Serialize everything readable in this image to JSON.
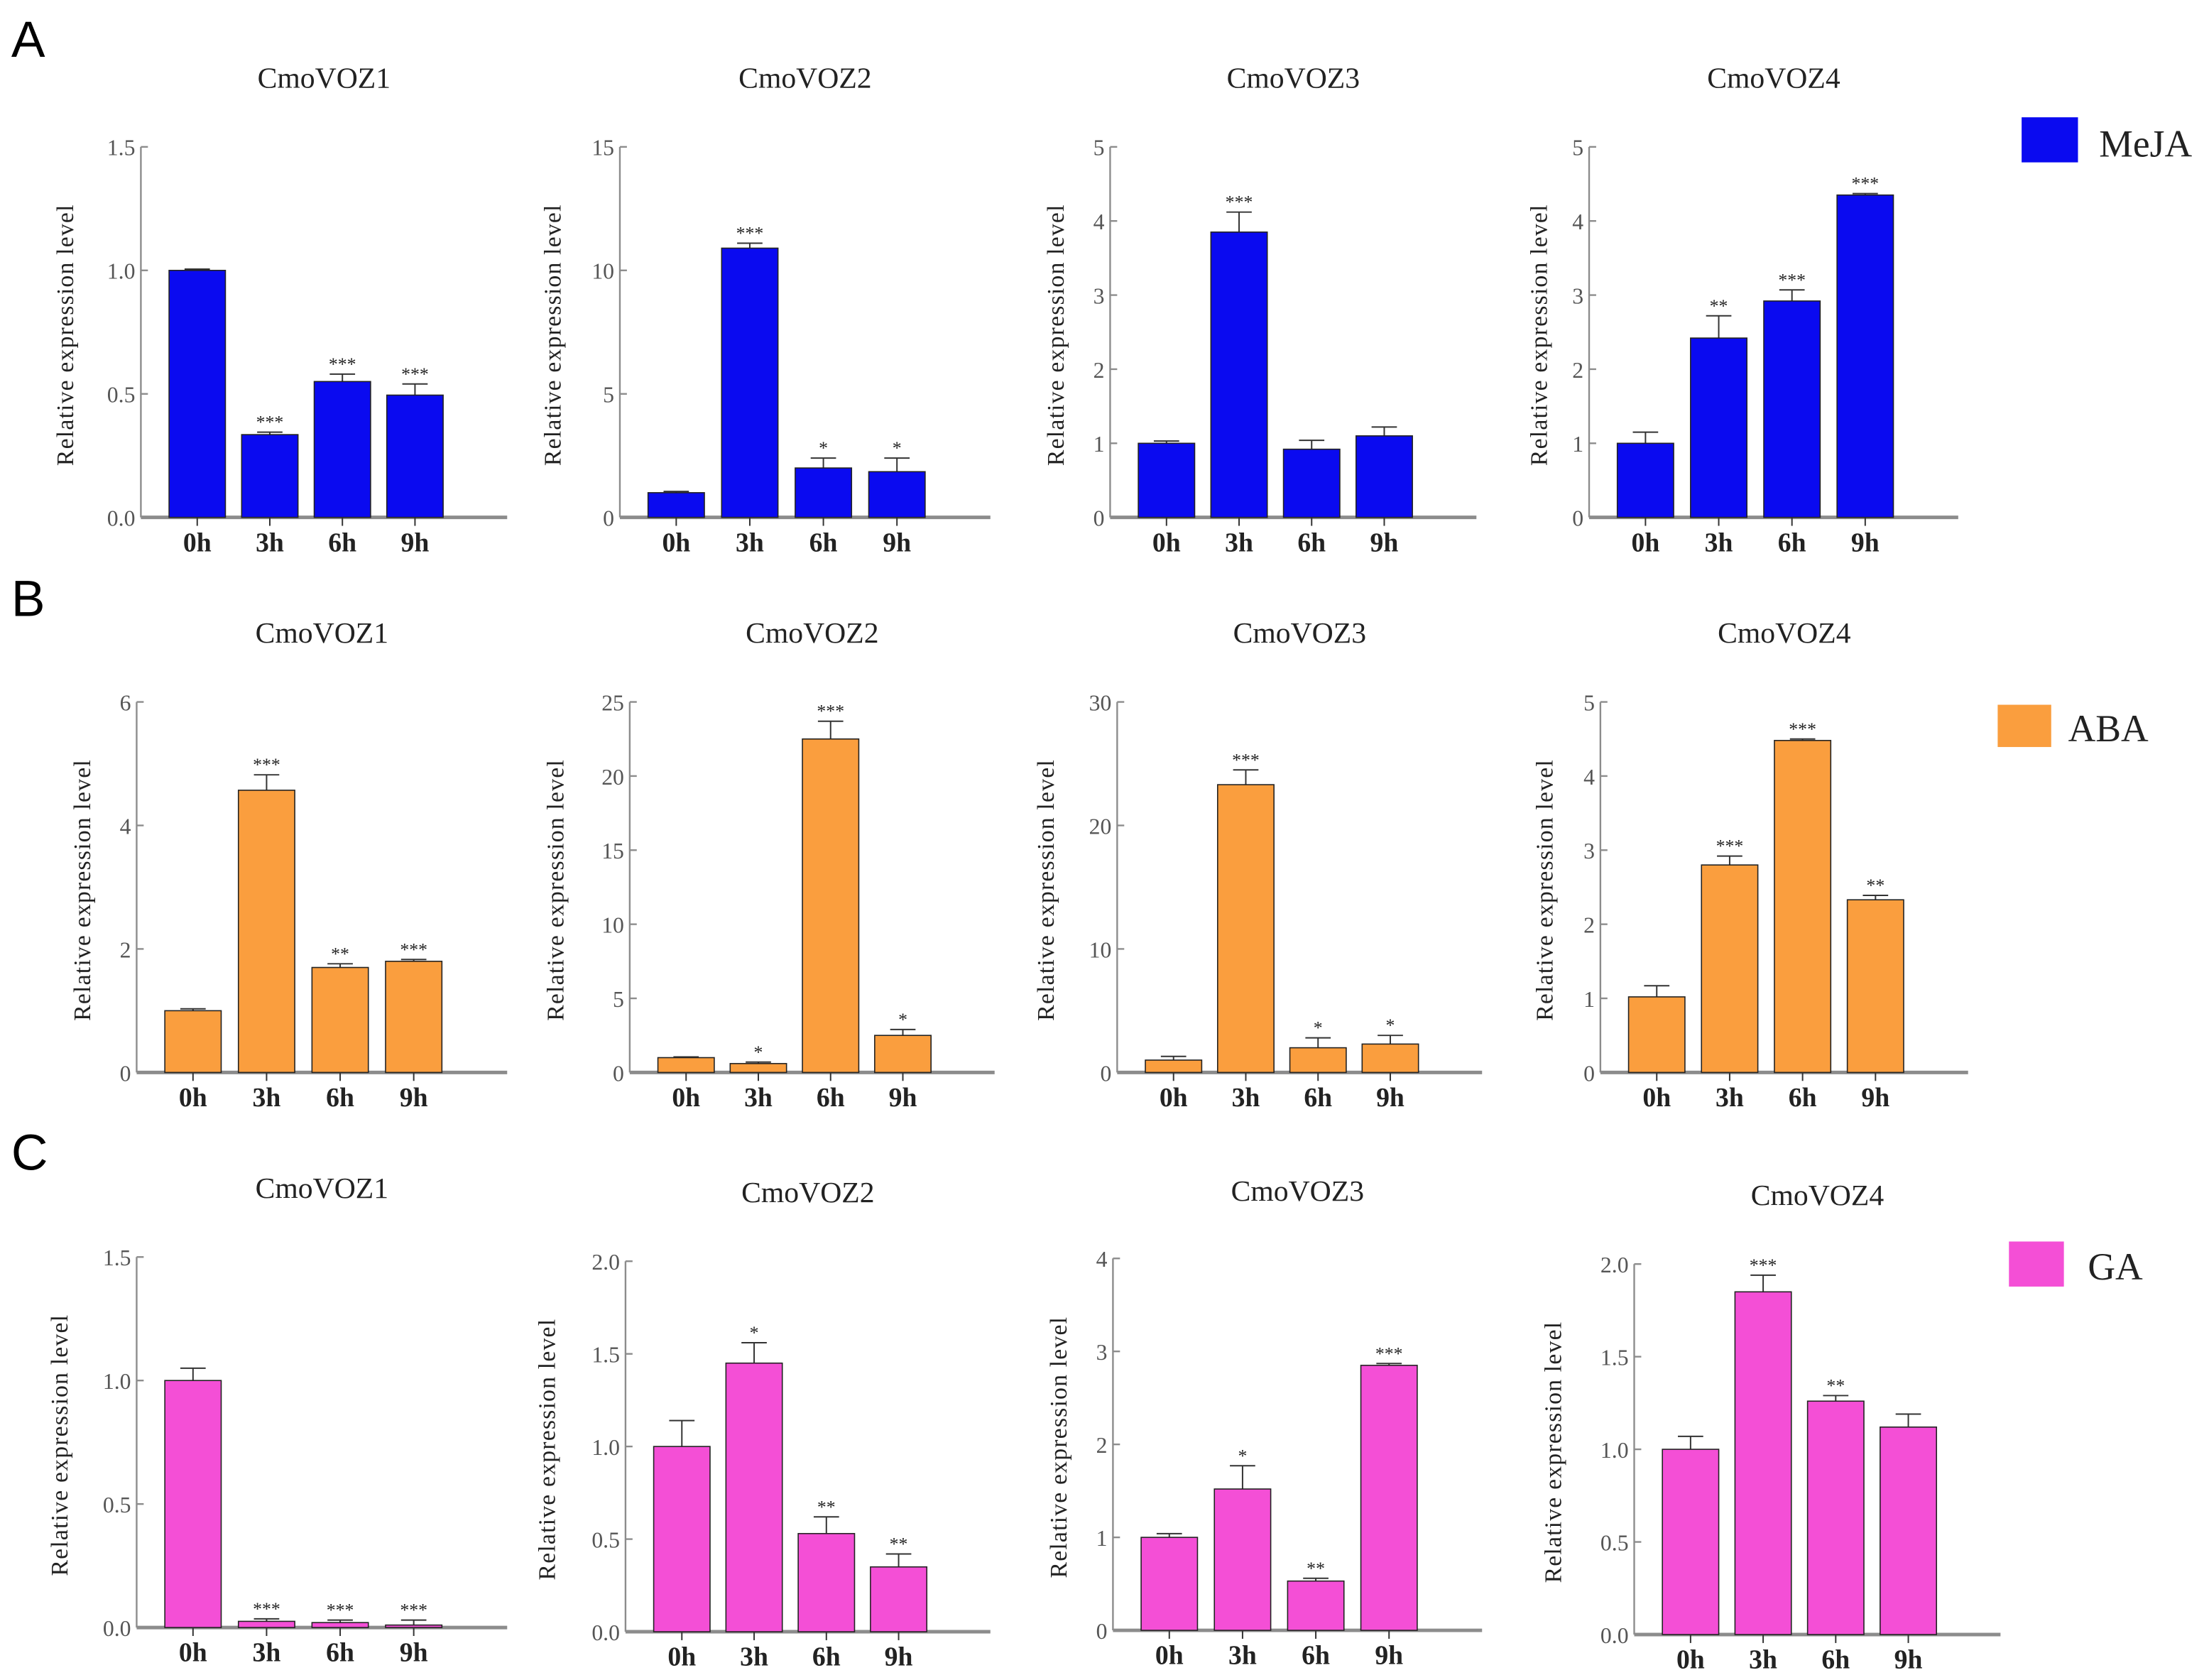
{
  "colors": {
    "MeJA": "#0a0af0",
    "ABA": "#fa9e3e",
    "GA": "#f44fd6",
    "axis": "#8c8c8c",
    "text": "#222222"
  },
  "panel_letters": [
    "A",
    "B",
    "C"
  ],
  "legends": [
    {
      "label": "MeJA",
      "color": "#0a0af0"
    },
    {
      "label": "ABA",
      "color": "#fa9e3e"
    },
    {
      "label": "GA",
      "color": "#f44fd6"
    }
  ],
  "chart_data": [
    {
      "type": "bar",
      "panel": "A",
      "title": "CmoVOZ1",
      "ylabel": "Relative expression level",
      "categories": [
        "0h",
        "3h",
        "6h",
        "9h"
      ],
      "values": [
        1.0,
        0.335,
        0.55,
        0.495
      ],
      "errors": [
        0.005,
        0.01,
        0.03,
        0.045
      ],
      "significance": [
        "",
        "***",
        "***",
        "***"
      ],
      "ylim": [
        0,
        1.5
      ],
      "yticks": [
        0,
        0.5,
        1.0,
        1.5
      ],
      "ytick_labels": [
        "0.0",
        "0.5",
        "1.0",
        "1.5"
      ],
      "series_color": "#0a0af0",
      "treatment": "MeJA"
    },
    {
      "type": "bar",
      "panel": "A",
      "title": "CmoVOZ2",
      "ylabel": "Relative expression level",
      "categories": [
        "0h",
        "3h",
        "6h",
        "9h"
      ],
      "values": [
        1.0,
        10.9,
        2.0,
        1.85
      ],
      "errors": [
        0.05,
        0.2,
        0.4,
        0.55
      ],
      "significance": [
        "",
        "***",
        "*",
        "*"
      ],
      "ylim": [
        0,
        15
      ],
      "yticks": [
        0,
        5,
        10,
        15
      ],
      "ytick_labels": [
        "0",
        "5",
        "10",
        "15"
      ],
      "series_color": "#0a0af0",
      "treatment": "MeJA"
    },
    {
      "type": "bar",
      "panel": "A",
      "title": "CmoVOZ3",
      "ylabel": "Relative expression level",
      "categories": [
        "0h",
        "3h",
        "6h",
        "9h"
      ],
      "values": [
        1.0,
        3.85,
        0.92,
        1.1
      ],
      "errors": [
        0.03,
        0.27,
        0.12,
        0.12
      ],
      "significance": [
        "",
        "***",
        "",
        ""
      ],
      "ylim": [
        0,
        5
      ],
      "yticks": [
        0,
        1,
        2,
        3,
        4,
        5
      ],
      "ytick_labels": [
        "0",
        "1",
        "2",
        "3",
        "4",
        "5"
      ],
      "series_color": "#0a0af0",
      "treatment": "MeJA"
    },
    {
      "type": "bar",
      "panel": "A",
      "title": "CmoVOZ4",
      "ylabel": "Relative expression level",
      "categories": [
        "0h",
        "3h",
        "6h",
        "9h"
      ],
      "values": [
        1.0,
        2.42,
        2.92,
        4.35
      ],
      "errors": [
        0.15,
        0.3,
        0.15,
        0.02
      ],
      "significance": [
        "",
        "**",
        "***",
        "***"
      ],
      "ylim": [
        0,
        5
      ],
      "yticks": [
        0,
        1,
        2,
        3,
        4,
        5
      ],
      "ytick_labels": [
        "0",
        "1",
        "2",
        "3",
        "4",
        "5"
      ],
      "series_color": "#0a0af0",
      "treatment": "MeJA"
    },
    {
      "type": "bar",
      "panel": "B",
      "title": "CmoVOZ1",
      "ylabel": "Relative expression level",
      "categories": [
        "0h",
        "3h",
        "6h",
        "9h"
      ],
      "values": [
        1.0,
        4.57,
        1.7,
        1.8
      ],
      "errors": [
        0.03,
        0.25,
        0.06,
        0.03
      ],
      "significance": [
        "",
        "***",
        "**",
        "***"
      ],
      "ylim": [
        0,
        6
      ],
      "yticks": [
        0,
        2,
        4,
        6
      ],
      "ytick_labels": [
        "0",
        "2",
        "4",
        "6"
      ],
      "series_color": "#fa9e3e",
      "treatment": "ABA"
    },
    {
      "type": "bar",
      "panel": "B",
      "title": "CmoVOZ2",
      "ylabel": "Relative expression level",
      "categories": [
        "0h",
        "3h",
        "6h",
        "9h"
      ],
      "values": [
        1.0,
        0.6,
        22.5,
        2.5
      ],
      "errors": [
        0.05,
        0.1,
        1.2,
        0.4
      ],
      "significance": [
        "",
        "*",
        "***",
        "*"
      ],
      "ylim": [
        0,
        25
      ],
      "yticks": [
        0,
        5,
        10,
        15,
        20,
        25
      ],
      "ytick_labels": [
        "0",
        "5",
        "10",
        "15",
        "20",
        "25"
      ],
      "series_color": "#fa9e3e",
      "treatment": "ABA"
    },
    {
      "type": "bar",
      "panel": "B",
      "title": "CmoVOZ3",
      "ylabel": "Relative expression level",
      "categories": [
        "0h",
        "3h",
        "6h",
        "9h"
      ],
      "values": [
        1.0,
        23.3,
        2.0,
        2.3
      ],
      "errors": [
        0.3,
        1.2,
        0.8,
        0.7
      ],
      "significance": [
        "",
        "***",
        "*",
        "*"
      ],
      "ylim": [
        0,
        30
      ],
      "yticks": [
        0,
        10,
        20,
        30
      ],
      "ytick_labels": [
        "0",
        "10",
        "20",
        "30"
      ],
      "series_color": "#fa9e3e",
      "treatment": "ABA"
    },
    {
      "type": "bar",
      "panel": "B",
      "title": "CmoVOZ4",
      "ylabel": "Relative expression level",
      "categories": [
        "0h",
        "3h",
        "6h",
        "9h"
      ],
      "values": [
        1.02,
        2.8,
        4.48,
        2.33
      ],
      "errors": [
        0.15,
        0.12,
        0.02,
        0.06
      ],
      "significance": [
        "",
        "***",
        "***",
        "**"
      ],
      "ylim": [
        0,
        5
      ],
      "yticks": [
        0,
        1,
        2,
        3,
        4,
        5
      ],
      "ytick_labels": [
        "0",
        "1",
        "2",
        "3",
        "4",
        "5"
      ],
      "series_color": "#fa9e3e",
      "treatment": "ABA"
    },
    {
      "type": "bar",
      "panel": "C",
      "title": "CmoVOZ1",
      "ylabel": "Relative expression level",
      "categories": [
        "0h",
        "3h",
        "6h",
        "9h"
      ],
      "values": [
        1.0,
        0.025,
        0.02,
        0.01
      ],
      "errors": [
        0.05,
        0.01,
        0.01,
        0.02
      ],
      "significance": [
        "",
        "***",
        "***",
        "***"
      ],
      "ylim": [
        0,
        1.5
      ],
      "yticks": [
        0,
        0.5,
        1.0,
        1.5
      ],
      "ytick_labels": [
        "0.0",
        "0.5",
        "1.0",
        "1.5"
      ],
      "series_color": "#f44fd6",
      "treatment": "GA"
    },
    {
      "type": "bar",
      "panel": "C",
      "title": "CmoVOZ2",
      "ylabel": "Relative expression level",
      "categories": [
        "0h",
        "3h",
        "6h",
        "9h"
      ],
      "values": [
        1.0,
        1.45,
        0.53,
        0.35
      ],
      "errors": [
        0.14,
        0.11,
        0.09,
        0.07
      ],
      "significance": [
        "",
        "*",
        "**",
        "**"
      ],
      "ylim": [
        0,
        2.0
      ],
      "yticks": [
        0,
        0.5,
        1.0,
        1.5,
        2.0
      ],
      "ytick_labels": [
        "0.0",
        "0.5",
        "1.0",
        "1.5",
        "2.0"
      ],
      "series_color": "#f44fd6",
      "treatment": "GA"
    },
    {
      "type": "bar",
      "panel": "C",
      "title": "CmoVOZ3",
      "ylabel": "Relative expression level",
      "categories": [
        "0h",
        "3h",
        "6h",
        "9h"
      ],
      "values": [
        1.0,
        1.52,
        0.53,
        2.85
      ],
      "errors": [
        0.04,
        0.25,
        0.03,
        0.02
      ],
      "significance": [
        "",
        "*",
        "**",
        "***"
      ],
      "ylim": [
        0,
        4
      ],
      "yticks": [
        0,
        1,
        2,
        3,
        4
      ],
      "ytick_labels": [
        "0",
        "1",
        "2",
        "3",
        "4"
      ],
      "series_color": "#f44fd6",
      "treatment": "GA"
    },
    {
      "type": "bar",
      "panel": "C",
      "title": "CmoVOZ4",
      "ylabel": "Relative expression level",
      "categories": [
        "0h",
        "3h",
        "6h",
        "9h"
      ],
      "values": [
        1.0,
        1.85,
        1.26,
        1.12
      ],
      "errors": [
        0.07,
        0.09,
        0.03,
        0.07
      ],
      "significance": [
        "",
        "***",
        "**",
        ""
      ],
      "ylim": [
        0,
        2.0
      ],
      "yticks": [
        0,
        0.5,
        1.0,
        1.5,
        2.0
      ],
      "ytick_labels": [
        "0.0",
        "0.5",
        "1.0",
        "1.5",
        "2.0"
      ],
      "series_color": "#f44fd6",
      "treatment": "GA"
    }
  ]
}
